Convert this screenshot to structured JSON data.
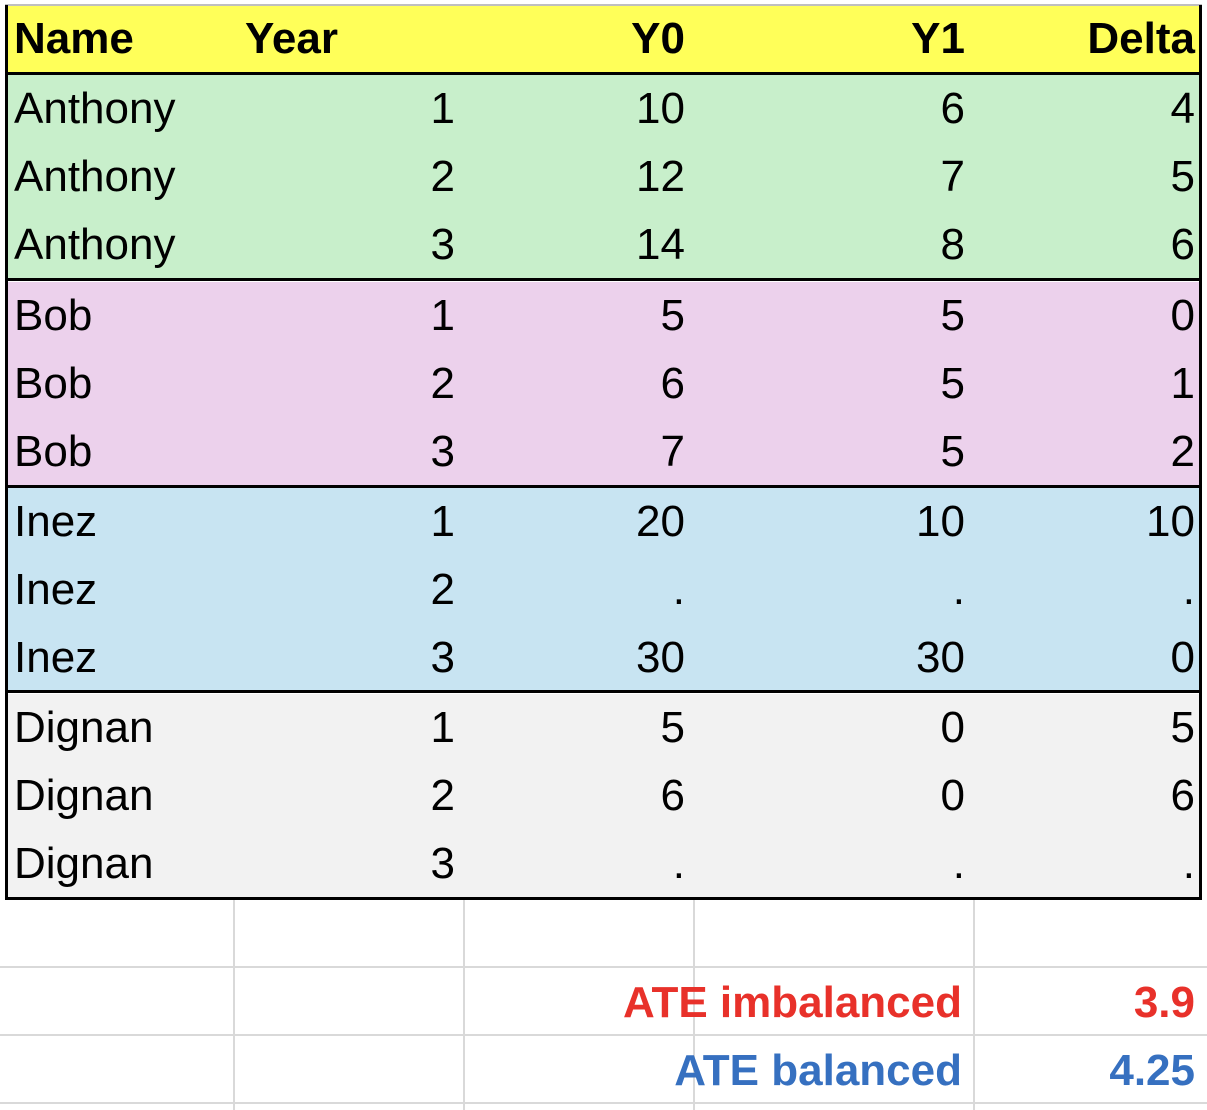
{
  "header": {
    "name": "Name",
    "year": "Year",
    "y0": "Y0",
    "y1": "Y1",
    "delta": "Delta"
  },
  "rows": [
    {
      "name": "Anthony",
      "year": "1",
      "y0": "10",
      "y1": "6",
      "delta": "4"
    },
    {
      "name": "Anthony",
      "year": "2",
      "y0": "12",
      "y1": "7",
      "delta": "5"
    },
    {
      "name": "Anthony",
      "year": "3",
      "y0": "14",
      "y1": "8",
      "delta": "6"
    },
    {
      "name": "Bob",
      "year": "1",
      "y0": "5",
      "y1": "5",
      "delta": "0"
    },
    {
      "name": "Bob",
      "year": "2",
      "y0": "6",
      "y1": "5",
      "delta": "1"
    },
    {
      "name": "Bob",
      "year": "3",
      "y0": "7",
      "y1": "5",
      "delta": "2"
    },
    {
      "name": "Inez",
      "year": "1",
      "y0": "20",
      "y1": "10",
      "delta": "10"
    },
    {
      "name": "Inez",
      "year": "2",
      "y0": ".",
      "y1": ".",
      "delta": "."
    },
    {
      "name": "Inez",
      "year": "3",
      "y0": "30",
      "y1": "30",
      "delta": "0"
    },
    {
      "name": "Dignan",
      "year": "1",
      "y0": "5",
      "y1": "0",
      "delta": "5"
    },
    {
      "name": "Dignan",
      "year": "2",
      "y0": "6",
      "y1": "0",
      "delta": "6"
    },
    {
      "name": "Dignan",
      "year": "3",
      "y0": ".",
      "y1": ".",
      "delta": "."
    }
  ],
  "summary": {
    "imbalanced": {
      "label": "ATE imbalanced",
      "value": "3.9"
    },
    "balanced": {
      "label": "ATE balanced",
      "value": "4.25"
    }
  },
  "colors": {
    "header_fill": "#ffff59",
    "anthony_fill": "#c8efcb",
    "bob_fill": "#ecd1ec",
    "inez_fill": "#c8e4f2",
    "dignan_fill": "#f2f2f2",
    "imbalanced_text": "#e8312a",
    "balanced_text": "#3670c0"
  }
}
